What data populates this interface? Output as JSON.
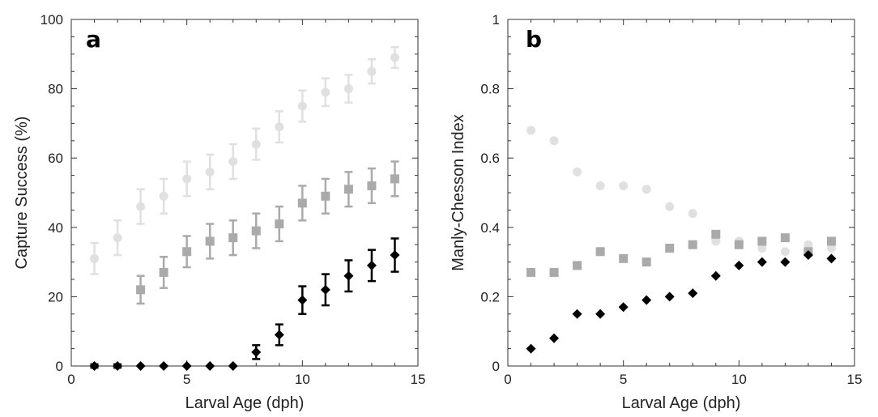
{
  "chart_data": [
    {
      "type": "scatter",
      "panel": "a",
      "title": "",
      "xlabel": "Larval Age (dph)",
      "ylabel": "Capture Success (%)",
      "xlim": [
        0,
        15
      ],
      "ylim": [
        0,
        100
      ],
      "xticks": [
        0,
        5,
        10,
        15
      ],
      "yticks": [
        0,
        20,
        40,
        60,
        80,
        100
      ],
      "grid": false,
      "legend": "none",
      "series": [
        {
          "marker": "circle",
          "color": "#e0e0e0",
          "x": [
            1,
            2,
            3,
            4,
            5,
            6,
            7,
            8,
            9,
            10,
            11,
            12,
            13,
            14
          ],
          "y": [
            31,
            37,
            46,
            49,
            54,
            56,
            59,
            64,
            69,
            75,
            79,
            80,
            85,
            89
          ],
          "err": [
            4.5,
            5,
            5,
            5,
            5,
            5,
            5,
            4.5,
            4.5,
            4.5,
            4,
            4,
            3.5,
            3
          ]
        },
        {
          "marker": "square",
          "color": "#aaaaaa",
          "x": [
            3,
            4,
            5,
            6,
            7,
            8,
            9,
            10,
            11,
            12,
            13,
            14
          ],
          "y": [
            22,
            27,
            33,
            36,
            37,
            39,
            41,
            47,
            49,
            51,
            52,
            54
          ],
          "err": [
            4,
            4.5,
            4.5,
            5,
            5,
            5,
            5,
            5,
            5,
            5,
            5,
            5
          ]
        },
        {
          "marker": "diamond",
          "color": "#000000",
          "x": [
            1,
            2,
            3,
            4,
            5,
            6,
            7,
            8,
            9,
            10,
            11,
            12,
            13,
            14
          ],
          "y": [
            0,
            0,
            0,
            0,
            0,
            0,
            0,
            4,
            9,
            19,
            22,
            26,
            29,
            32
          ],
          "err": [
            0.5,
            0.5,
            0,
            0,
            0,
            0,
            0,
            2,
            3,
            4,
            4.5,
            4.5,
            4.5,
            4.8
          ]
        }
      ]
    },
    {
      "type": "scatter",
      "panel": "b",
      "title": "",
      "xlabel": "Larval Age (dph)",
      "ylabel": "Manly-Chesson Index",
      "xlim": [
        0,
        15
      ],
      "ylim": [
        0,
        1
      ],
      "xticks": [
        0,
        5,
        10,
        15
      ],
      "yticks": [
        0,
        0.2,
        0.4,
        0.6,
        0.8,
        1
      ],
      "grid": false,
      "legend": "none",
      "series": [
        {
          "marker": "circle",
          "color": "#e0e0e0",
          "x": [
            1,
            2,
            3,
            4,
            5,
            6,
            7,
            8,
            9,
            10,
            11,
            12,
            13,
            14
          ],
          "y": [
            0.68,
            0.65,
            0.56,
            0.52,
            0.52,
            0.51,
            0.46,
            0.44,
            0.36,
            0.36,
            0.34,
            0.33,
            0.35,
            0.34
          ]
        },
        {
          "marker": "square",
          "color": "#aaaaaa",
          "x": [
            1,
            2,
            3,
            4,
            5,
            6,
            7,
            8,
            9,
            10,
            11,
            12,
            13,
            14
          ],
          "y": [
            0.27,
            0.27,
            0.29,
            0.33,
            0.31,
            0.3,
            0.34,
            0.35,
            0.38,
            0.35,
            0.36,
            0.37,
            0.33,
            0.36
          ]
        },
        {
          "marker": "diamond",
          "color": "#000000",
          "x": [
            1,
            2,
            3,
            4,
            5,
            6,
            7,
            8,
            9,
            10,
            11,
            12,
            13,
            14
          ],
          "y": [
            0.05,
            0.08,
            0.15,
            0.15,
            0.17,
            0.19,
            0.2,
            0.21,
            0.26,
            0.29,
            0.3,
            0.3,
            0.32,
            0.31
          ]
        }
      ]
    }
  ],
  "labels": {
    "panel_a_letter": "a",
    "panel_b_letter": "b"
  }
}
